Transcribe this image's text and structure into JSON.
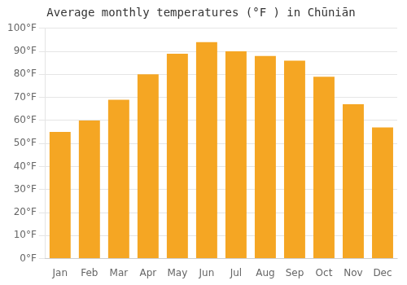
{
  "chart_data": {
    "type": "bar",
    "title": "Average monthly temperatures (°F ) in Chūniān",
    "categories": [
      "Jan",
      "Feb",
      "Mar",
      "Apr",
      "May",
      "Jun",
      "Jul",
      "Aug",
      "Sep",
      "Oct",
      "Nov",
      "Dec"
    ],
    "values": [
      55,
      60,
      69,
      80,
      89,
      94,
      90,
      88,
      86,
      79,
      67,
      57
    ],
    "color": "#F5A623",
    "ylim": [
      0,
      100
    ],
    "yticks": [
      {
        "value": 0,
        "label": "0°F"
      },
      {
        "value": 10,
        "label": "10°F"
      },
      {
        "value": 20,
        "label": "20°F"
      },
      {
        "value": 30,
        "label": "30°F"
      },
      {
        "value": 40,
        "label": "40°F"
      },
      {
        "value": 50,
        "label": "50°F"
      },
      {
        "value": 60,
        "label": "60°F"
      },
      {
        "value": 70,
        "label": "70°F"
      },
      {
        "value": 80,
        "label": "80°F"
      },
      {
        "value": 90,
        "label": "90°F"
      },
      {
        "value": 100,
        "label": "100°F"
      }
    ],
    "grid": true
  }
}
